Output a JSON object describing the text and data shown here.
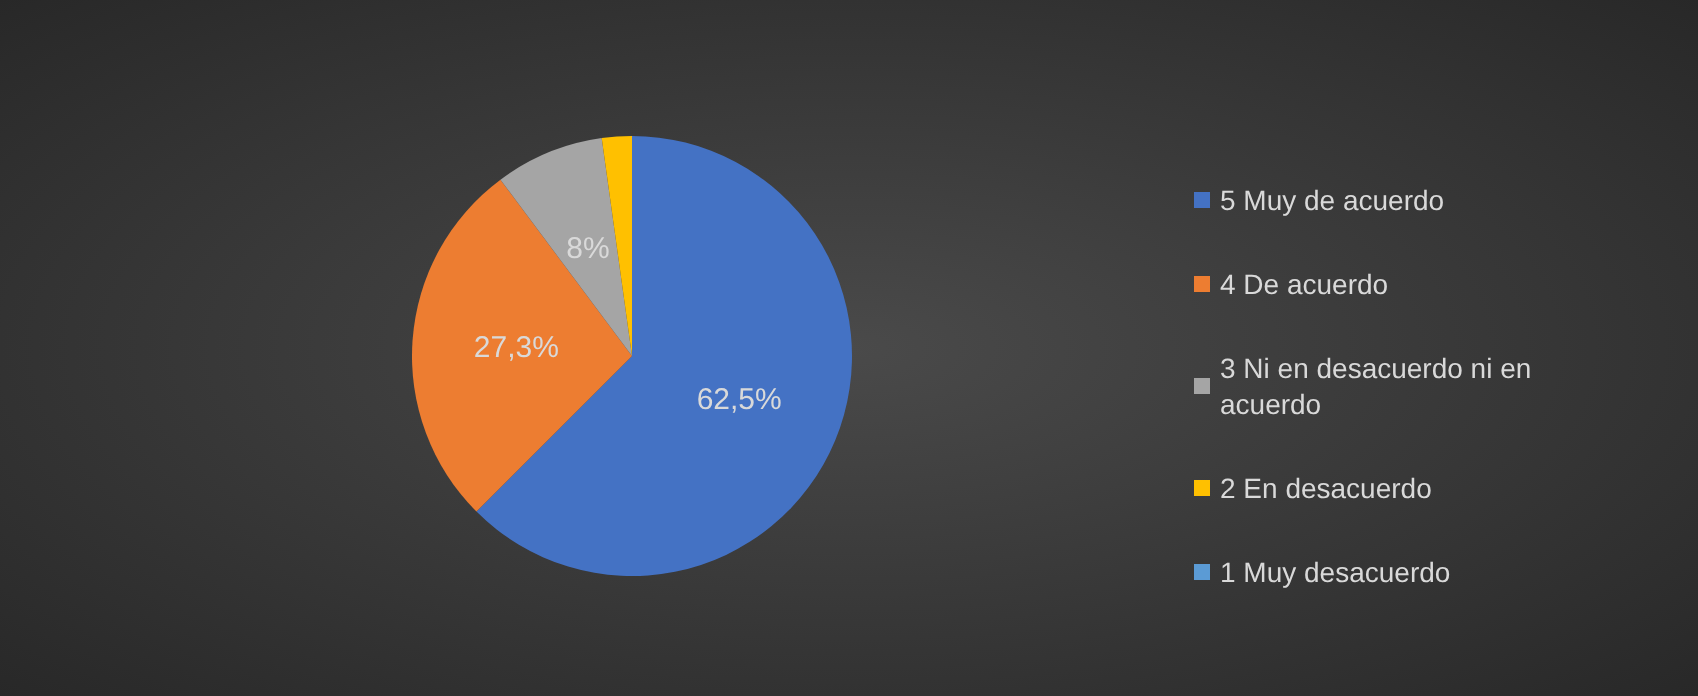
{
  "chart_data": {
    "type": "pie",
    "categories": [
      "5 Muy de acuerdo",
      "4 De acuerdo",
      "3 Ni en desacuerdo ni en acuerdo",
      "2 En desacuerdo",
      "1 Muy desacuerdo"
    ],
    "values": [
      62.5,
      27.3,
      8,
      2.2,
      0
    ],
    "colors": [
      "#4472c4",
      "#ed7d31",
      "#a5a5a5",
      "#ffc000",
      "#5b9bd5"
    ],
    "value_labels": [
      "62,5%",
      "27,3%",
      "8%",
      null,
      null
    ],
    "legend": "right"
  }
}
